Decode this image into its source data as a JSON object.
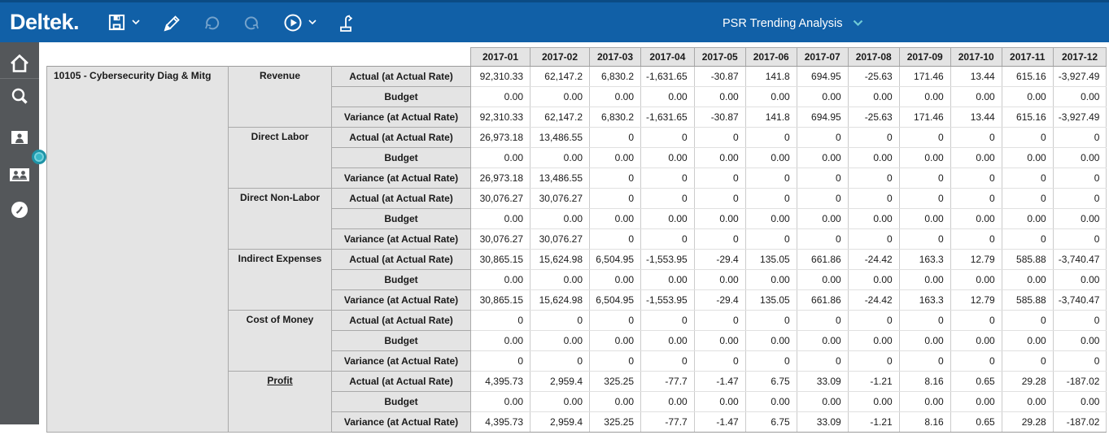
{
  "app": {
    "brand": "Deltek.",
    "title_dropdown": "PSR Trending Analysis",
    "colors": {
      "topbar_blue": "#1160A7",
      "topbar_edge": "#0B4B84",
      "sidebar_gray": "#54575A",
      "accent_teal": "#35B6C6",
      "chevron_teal": "#6FCBD6",
      "header_cell_bg": "#E4E4E4",
      "grid_dark": "#9B9B9B",
      "grid_light": "#E0E0E0"
    }
  },
  "toolbar": {
    "icons": [
      "save-icon",
      "edit-icon",
      "undo-icon",
      "redo-icon",
      "run-icon",
      "export-icon"
    ]
  },
  "sidebar": {
    "icons": [
      "home-icon",
      "search-icon",
      "contact-card-icon",
      "people-card-icon",
      "clock-icon"
    ]
  },
  "table": {
    "project_label": "10105 - Cybersecurity Diag & Mitg",
    "months": [
      "2017-01",
      "2017-02",
      "2017-03",
      "2017-04",
      "2017-05",
      "2017-06",
      "2017-07",
      "2017-08",
      "2017-09",
      "2017-10",
      "2017-11",
      "2017-12"
    ],
    "groups": [
      {
        "label": "Revenue",
        "underlined": false,
        "rows": [
          {
            "metric": "Actual (at Actual Rate)",
            "values": [
              "92,310.33",
              "62,147.2",
              "6,830.2",
              "-1,631.65",
              "-30.87",
              "141.8",
              "694.95",
              "-25.63",
              "171.46",
              "13.44",
              "615.16",
              "-3,927.49"
            ]
          },
          {
            "metric": "Budget",
            "values": [
              "0.00",
              "0.00",
              "0.00",
              "0.00",
              "0.00",
              "0.00",
              "0.00",
              "0.00",
              "0.00",
              "0.00",
              "0.00",
              "0.00"
            ]
          },
          {
            "metric": "Variance (at Actual Rate)",
            "values": [
              "92,310.33",
              "62,147.2",
              "6,830.2",
              "-1,631.65",
              "-30.87",
              "141.8",
              "694.95",
              "-25.63",
              "171.46",
              "13.44",
              "615.16",
              "-3,927.49"
            ]
          }
        ]
      },
      {
        "label": "Direct Labor",
        "underlined": false,
        "rows": [
          {
            "metric": "Actual (at Actual Rate)",
            "values": [
              "26,973.18",
              "13,486.55",
              "0",
              "0",
              "0",
              "0",
              "0",
              "0",
              "0",
              "0",
              "0",
              "0"
            ]
          },
          {
            "metric": "Budget",
            "values": [
              "0.00",
              "0.00",
              "0.00",
              "0.00",
              "0.00",
              "0.00",
              "0.00",
              "0.00",
              "0.00",
              "0.00",
              "0.00",
              "0.00"
            ]
          },
          {
            "metric": "Variance (at Actual Rate)",
            "values": [
              "26,973.18",
              "13,486.55",
              "0",
              "0",
              "0",
              "0",
              "0",
              "0",
              "0",
              "0",
              "0",
              "0"
            ]
          }
        ]
      },
      {
        "label": "Direct Non-Labor",
        "underlined": false,
        "rows": [
          {
            "metric": "Actual (at Actual Rate)",
            "values": [
              "30,076.27",
              "30,076.27",
              "0",
              "0",
              "0",
              "0",
              "0",
              "0",
              "0",
              "0",
              "0",
              "0"
            ]
          },
          {
            "metric": "Budget",
            "values": [
              "0.00",
              "0.00",
              "0.00",
              "0.00",
              "0.00",
              "0.00",
              "0.00",
              "0.00",
              "0.00",
              "0.00",
              "0.00",
              "0.00"
            ]
          },
          {
            "metric": "Variance (at Actual Rate)",
            "values": [
              "30,076.27",
              "30,076.27",
              "0",
              "0",
              "0",
              "0",
              "0",
              "0",
              "0",
              "0",
              "0",
              "0"
            ]
          }
        ]
      },
      {
        "label": "Indirect Expenses",
        "underlined": false,
        "rows": [
          {
            "metric": "Actual (at Actual Rate)",
            "values": [
              "30,865.15",
              "15,624.98",
              "6,504.95",
              "-1,553.95",
              "-29.4",
              "135.05",
              "661.86",
              "-24.42",
              "163.3",
              "12.79",
              "585.88",
              "-3,740.47"
            ]
          },
          {
            "metric": "Budget",
            "values": [
              "0.00",
              "0.00",
              "0.00",
              "0.00",
              "0.00",
              "0.00",
              "0.00",
              "0.00",
              "0.00",
              "0.00",
              "0.00",
              "0.00"
            ]
          },
          {
            "metric": "Variance (at Actual Rate)",
            "values": [
              "30,865.15",
              "15,624.98",
              "6,504.95",
              "-1,553.95",
              "-29.4",
              "135.05",
              "661.86",
              "-24.42",
              "163.3",
              "12.79",
              "585.88",
              "-3,740.47"
            ]
          }
        ]
      },
      {
        "label": "Cost of Money",
        "underlined": false,
        "rows": [
          {
            "metric": "Actual (at Actual Rate)",
            "values": [
              "0",
              "0",
              "0",
              "0",
              "0",
              "0",
              "0",
              "0",
              "0",
              "0",
              "0",
              "0"
            ]
          },
          {
            "metric": "Budget",
            "values": [
              "0.00",
              "0.00",
              "0.00",
              "0.00",
              "0.00",
              "0.00",
              "0.00",
              "0.00",
              "0.00",
              "0.00",
              "0.00",
              "0.00"
            ]
          },
          {
            "metric": "Variance (at Actual Rate)",
            "values": [
              "0",
              "0",
              "0",
              "0",
              "0",
              "0",
              "0",
              "0",
              "0",
              "0",
              "0",
              "0"
            ]
          }
        ]
      },
      {
        "label": "Profit",
        "underlined": true,
        "rows": [
          {
            "metric": "Actual (at Actual Rate)",
            "values": [
              "4,395.73",
              "2,959.4",
              "325.25",
              "-77.7",
              "-1.47",
              "6.75",
              "33.09",
              "-1.21",
              "8.16",
              "0.65",
              "29.28",
              "-187.02"
            ]
          },
          {
            "metric": "Budget",
            "values": [
              "0.00",
              "0.00",
              "0.00",
              "0.00",
              "0.00",
              "0.00",
              "0.00",
              "0.00",
              "0.00",
              "0.00",
              "0.00",
              "0.00"
            ]
          },
          {
            "metric": "Variance (at Actual Rate)",
            "values": [
              "4,395.73",
              "2,959.4",
              "325.25",
              "-77.7",
              "-1.47",
              "6.75",
              "33.09",
              "-1.21",
              "8.16",
              "0.65",
              "29.28",
              "-187.02"
            ]
          }
        ]
      }
    ]
  }
}
